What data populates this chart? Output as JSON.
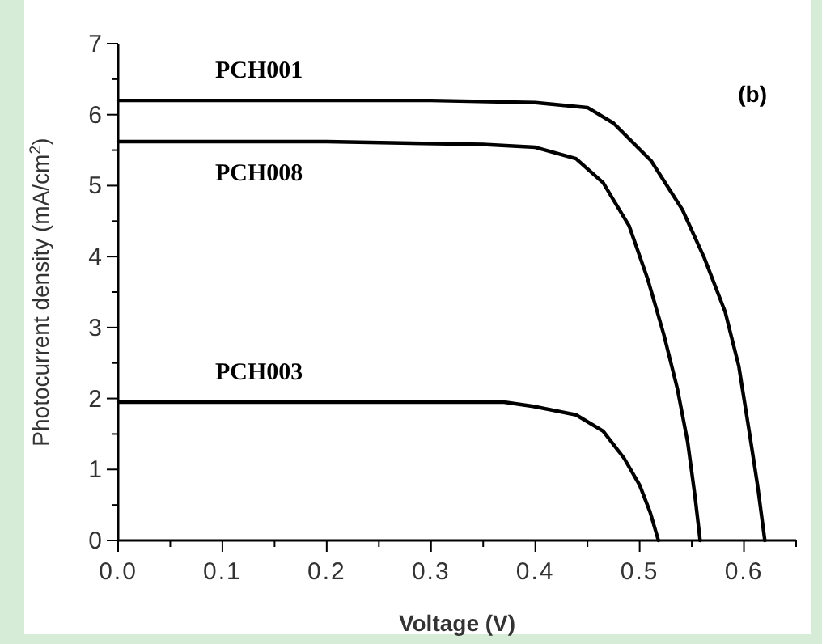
{
  "chart_data": {
    "type": "line",
    "xlabel": "Voltage (V)",
    "ylabel": "Photocurrent density (mA/cm$^{2}$)",
    "annotations": [
      "(b)"
    ],
    "xlim": [
      0,
      0.65
    ],
    "ylim": [
      0,
      7
    ],
    "xticks": [
      {
        "value": 0,
        "label": "0.0"
      },
      {
        "value": 0.05,
        "label": null
      },
      {
        "value": 0.1,
        "label": "0.1"
      },
      {
        "value": 0.15,
        "label": null
      },
      {
        "value": 0.2,
        "label": "0.2"
      },
      {
        "value": 0.25,
        "label": null
      },
      {
        "value": 0.3,
        "label": "0.3"
      },
      {
        "value": 0.35,
        "label": null
      },
      {
        "value": 0.4,
        "label": "0.4"
      },
      {
        "value": 0.45,
        "label": null
      },
      {
        "value": 0.5,
        "label": "0.5"
      },
      {
        "value": 0.55,
        "label": null
      },
      {
        "value": 0.6,
        "label": "0.6"
      },
      {
        "value": 0.65,
        "label": null
      }
    ],
    "yticks": [
      0,
      {
        "value": 0.5,
        "label": null
      },
      1,
      {
        "value": 1.5,
        "label": null
      },
      2,
      {
        "value": 2.5,
        "label": null
      },
      3,
      {
        "value": 3.5,
        "label": null
      },
      4,
      {
        "value": 4.5,
        "label": null
      },
      5,
      {
        "value": 5.5,
        "label": null
      },
      6,
      {
        "value": 6.5,
        "label": null
      },
      7
    ],
    "marker": "none",
    "line_style": "solid",
    "series": [
      {
        "name": "PCH001",
        "color": "#000000",
        "x": [
          0,
          0.1,
          0.2,
          0.3,
          0.4,
          0.45,
          0.475,
          0.511,
          0.541,
          0.562,
          0.582,
          0.595,
          0.605,
          0.613,
          0.62
        ],
        "values": [
          6.2,
          6.2,
          6.2,
          6.2,
          6.17,
          6.1,
          5.88,
          5.35,
          4.66,
          3.98,
          3.22,
          2.46,
          1.54,
          0.78,
          0
        ]
      },
      {
        "name": "PCH008",
        "color": "#000000",
        "x": [
          0,
          0.1,
          0.2,
          0.35,
          0.4,
          0.439,
          0.465,
          0.49,
          0.508,
          0.523,
          0.536,
          0.546,
          0.553,
          0.558
        ],
        "values": [
          5.62,
          5.62,
          5.62,
          5.58,
          5.54,
          5.38,
          5.04,
          4.43,
          3.67,
          2.91,
          2.15,
          1.39,
          0.63,
          0
        ]
      },
      {
        "name": "PCH003",
        "color": "#000000",
        "x": [
          0,
          0.2,
          0.37,
          0.398,
          0.439,
          0.465,
          0.485,
          0.5,
          0.51,
          0.518
        ],
        "values": [
          1.95,
          1.95,
          1.95,
          1.89,
          1.77,
          1.54,
          1.16,
          0.78,
          0.4,
          0
        ]
      }
    ]
  }
}
